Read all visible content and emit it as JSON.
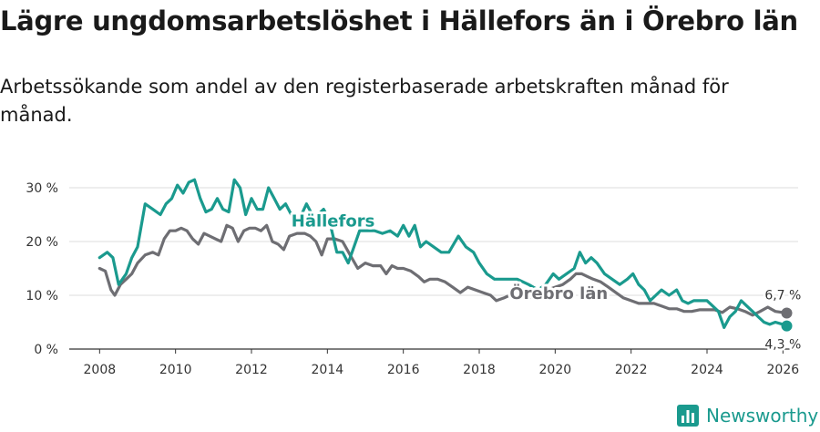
{
  "title": "Lägre ungdomsarbetslöshet i Hällefors än i Örebro län",
  "subtitle": "Arbetssökande som andel av den registerbaserade arbetskraften månad för månad.",
  "brand": "Newsworthy",
  "colors": {
    "hallefors": "#1a9a8e",
    "orebro": "#6e6e73",
    "grid": "#dddddd",
    "text": "#1a1a1a"
  },
  "chart_data": {
    "type": "line",
    "title": "Lägre ungdomsarbetslöshet i Hällefors än i Örebro län",
    "xlabel": "",
    "ylabel": "",
    "xlim": [
      2007.2,
      2026.4
    ],
    "ylim": [
      0,
      30
    ],
    "x_ticks": [
      2008,
      2010,
      2012,
      2014,
      2016,
      2018,
      2020,
      2022,
      2024,
      2026
    ],
    "x_tick_labels": [
      "2008",
      "2010",
      "2012",
      "2014",
      "2016",
      "2018",
      "2020",
      "2022",
      "2024",
      "2026"
    ],
    "y_ticks": [
      0,
      10,
      20,
      30
    ],
    "y_tick_labels": [
      "0 %",
      "10 %",
      "20 %",
      "30 %"
    ],
    "series": [
      {
        "name": "Hällefors",
        "label": "Hällefors",
        "end_label": "4,3 %",
        "points": [
          [
            2008.0,
            17
          ],
          [
            2008.2,
            18
          ],
          [
            2008.35,
            17
          ],
          [
            2008.5,
            12
          ],
          [
            2008.7,
            14
          ],
          [
            2008.85,
            17
          ],
          [
            2009.0,
            19
          ],
          [
            2009.2,
            27
          ],
          [
            2009.4,
            26
          ],
          [
            2009.6,
            25
          ],
          [
            2009.75,
            27
          ],
          [
            2009.9,
            28
          ],
          [
            2010.05,
            30.5
          ],
          [
            2010.2,
            29
          ],
          [
            2010.35,
            31
          ],
          [
            2010.5,
            31.5
          ],
          [
            2010.65,
            28
          ],
          [
            2010.8,
            25.5
          ],
          [
            2010.95,
            26
          ],
          [
            2011.1,
            28
          ],
          [
            2011.25,
            26
          ],
          [
            2011.4,
            25.5
          ],
          [
            2011.55,
            31.5
          ],
          [
            2011.7,
            30
          ],
          [
            2011.85,
            25
          ],
          [
            2012.0,
            28
          ],
          [
            2012.15,
            26
          ],
          [
            2012.3,
            26
          ],
          [
            2012.45,
            30
          ],
          [
            2012.6,
            28
          ],
          [
            2012.75,
            26
          ],
          [
            2012.9,
            27
          ],
          [
            2013.05,
            25
          ],
          [
            2013.25,
            24
          ],
          [
            2013.45,
            27
          ],
          [
            2013.6,
            25
          ],
          [
            2013.75,
            25
          ],
          [
            2013.9,
            26
          ],
          [
            2014.05,
            24
          ],
          [
            2014.25,
            18
          ],
          [
            2014.4,
            18
          ],
          [
            2014.55,
            16
          ],
          [
            2014.7,
            19
          ],
          [
            2014.85,
            22
          ],
          [
            2015.05,
            22
          ],
          [
            2015.25,
            22
          ],
          [
            2015.45,
            21.5
          ],
          [
            2015.65,
            22
          ],
          [
            2015.85,
            21
          ],
          [
            2016.0,
            23
          ],
          [
            2016.15,
            21
          ],
          [
            2016.3,
            23
          ],
          [
            2016.45,
            19
          ],
          [
            2016.6,
            20
          ],
          [
            2016.8,
            19
          ],
          [
            2017.0,
            18
          ],
          [
            2017.2,
            18
          ],
          [
            2017.45,
            21
          ],
          [
            2017.65,
            19
          ],
          [
            2017.85,
            18
          ],
          [
            2018.0,
            16
          ],
          [
            2018.2,
            14
          ],
          [
            2018.4,
            13
          ],
          [
            2018.6,
            13
          ],
          [
            2018.8,
            13
          ],
          [
            2019.0,
            13
          ],
          [
            2019.3,
            12
          ],
          [
            2019.55,
            11
          ],
          [
            2019.75,
            12
          ],
          [
            2019.95,
            14
          ],
          [
            2020.1,
            13
          ],
          [
            2020.3,
            14
          ],
          [
            2020.5,
            15
          ],
          [
            2020.65,
            18
          ],
          [
            2020.8,
            16
          ],
          [
            2020.95,
            17
          ],
          [
            2021.1,
            16
          ],
          [
            2021.3,
            14
          ],
          [
            2021.5,
            13
          ],
          [
            2021.7,
            12
          ],
          [
            2021.9,
            13
          ],
          [
            2022.05,
            14
          ],
          [
            2022.2,
            12
          ],
          [
            2022.35,
            11
          ],
          [
            2022.5,
            9
          ],
          [
            2022.65,
            10
          ],
          [
            2022.8,
            11
          ],
          [
            2023.0,
            10
          ],
          [
            2023.2,
            11
          ],
          [
            2023.35,
            9
          ],
          [
            2023.5,
            8.5
          ],
          [
            2023.65,
            9
          ],
          [
            2023.8,
            9
          ],
          [
            2024.0,
            9
          ],
          [
            2024.15,
            8
          ],
          [
            2024.3,
            7
          ],
          [
            2024.45,
            4
          ],
          [
            2024.6,
            6
          ],
          [
            2024.75,
            7
          ],
          [
            2024.9,
            9
          ],
          [
            2025.05,
            8
          ],
          [
            2025.2,
            7
          ],
          [
            2025.35,
            6
          ],
          [
            2025.5,
            5
          ],
          [
            2025.65,
            4.6
          ],
          [
            2025.8,
            5
          ],
          [
            2025.95,
            4.7
          ],
          [
            2026.1,
            4.3
          ]
        ]
      },
      {
        "name": "Örebro län",
        "label": "Örebro län",
        "end_label": "6,7 %",
        "points": [
          [
            2008.0,
            15
          ],
          [
            2008.15,
            14.5
          ],
          [
            2008.3,
            11
          ],
          [
            2008.4,
            10
          ],
          [
            2008.55,
            12
          ],
          [
            2008.7,
            13
          ],
          [
            2008.85,
            14
          ],
          [
            2009.0,
            16
          ],
          [
            2009.2,
            17.5
          ],
          [
            2009.4,
            18
          ],
          [
            2009.55,
            17.5
          ],
          [
            2009.7,
            20.5
          ],
          [
            2009.85,
            22
          ],
          [
            2010.0,
            22
          ],
          [
            2010.15,
            22.5
          ],
          [
            2010.3,
            22
          ],
          [
            2010.45,
            20.5
          ],
          [
            2010.6,
            19.5
          ],
          [
            2010.75,
            21.5
          ],
          [
            2010.9,
            21
          ],
          [
            2011.05,
            20.5
          ],
          [
            2011.2,
            20
          ],
          [
            2011.35,
            23
          ],
          [
            2011.5,
            22.5
          ],
          [
            2011.65,
            20
          ],
          [
            2011.8,
            22
          ],
          [
            2011.95,
            22.5
          ],
          [
            2012.1,
            22.5
          ],
          [
            2012.25,
            22
          ],
          [
            2012.4,
            23
          ],
          [
            2012.55,
            20
          ],
          [
            2012.7,
            19.5
          ],
          [
            2012.85,
            18.5
          ],
          [
            2013.0,
            21
          ],
          [
            2013.2,
            21.5
          ],
          [
            2013.4,
            21.5
          ],
          [
            2013.55,
            21
          ],
          [
            2013.7,
            20
          ],
          [
            2013.85,
            17.5
          ],
          [
            2014.0,
            20.5
          ],
          [
            2014.2,
            20.5
          ],
          [
            2014.4,
            20
          ],
          [
            2014.6,
            17.5
          ],
          [
            2014.8,
            15
          ],
          [
            2015.0,
            16
          ],
          [
            2015.2,
            15.5
          ],
          [
            2015.4,
            15.5
          ],
          [
            2015.55,
            14
          ],
          [
            2015.7,
            15.5
          ],
          [
            2015.85,
            15
          ],
          [
            2016.0,
            15
          ],
          [
            2016.2,
            14.5
          ],
          [
            2016.4,
            13.5
          ],
          [
            2016.55,
            12.5
          ],
          [
            2016.7,
            13
          ],
          [
            2016.9,
            13
          ],
          [
            2017.1,
            12.5
          ],
          [
            2017.3,
            11.5
          ],
          [
            2017.5,
            10.5
          ],
          [
            2017.7,
            11.5
          ],
          [
            2017.9,
            11
          ],
          [
            2018.1,
            10.5
          ],
          [
            2018.3,
            10
          ],
          [
            2018.45,
            9
          ],
          [
            2018.65,
            9.5
          ],
          [
            2018.8,
            10
          ],
          [
            2019.0,
            11
          ],
          [
            2019.2,
            10
          ],
          [
            2019.4,
            9.5
          ],
          [
            2019.6,
            10
          ],
          [
            2019.8,
            11
          ],
          [
            2020.0,
            11.5
          ],
          [
            2020.2,
            12
          ],
          [
            2020.4,
            13
          ],
          [
            2020.55,
            14
          ],
          [
            2020.7,
            14
          ],
          [
            2020.85,
            13.5
          ],
          [
            2021.0,
            13
          ],
          [
            2021.2,
            12.5
          ],
          [
            2021.4,
            11.5
          ],
          [
            2021.6,
            10.5
          ],
          [
            2021.8,
            9.5
          ],
          [
            2022.0,
            9
          ],
          [
            2022.2,
            8.5
          ],
          [
            2022.4,
            8.5
          ],
          [
            2022.6,
            8.5
          ],
          [
            2022.8,
            8
          ],
          [
            2023.0,
            7.5
          ],
          [
            2023.2,
            7.5
          ],
          [
            2023.4,
            7
          ],
          [
            2023.6,
            7
          ],
          [
            2023.8,
            7.3
          ],
          [
            2024.0,
            7.3
          ],
          [
            2024.2,
            7.3
          ],
          [
            2024.4,
            6.8
          ],
          [
            2024.6,
            7.8
          ],
          [
            2024.8,
            7.5
          ],
          [
            2025.0,
            7
          ],
          [
            2025.2,
            6.3
          ],
          [
            2025.4,
            7
          ],
          [
            2025.6,
            7.8
          ],
          [
            2025.8,
            7
          ],
          [
            2026.1,
            6.7
          ]
        ]
      }
    ]
  }
}
